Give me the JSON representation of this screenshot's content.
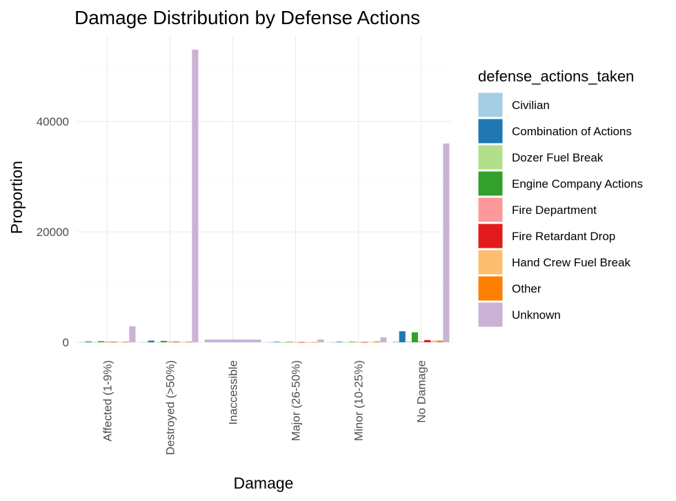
{
  "chart_data": {
    "type": "bar",
    "title": "Damage Distribution by Defense Actions",
    "xlabel": "Damage",
    "ylabel": "Proportion",
    "ylim": [
      0,
      55500
    ],
    "yticks": [
      0,
      20000,
      40000
    ],
    "grid": true,
    "legend_position": "right",
    "legend_title": "defense_actions_taken",
    "categories": [
      "Affected (1-9%)",
      "Destroyed (>50%)",
      "Inaccessible",
      "Major (26-50%)",
      "Minor (10-25%)",
      "No Damage"
    ],
    "series": [
      {
        "name": "Civilian",
        "color": "#A6CEE3",
        "values": [
          60,
          60,
          null,
          30,
          40,
          150
        ]
      },
      {
        "name": "Combination of Actions",
        "color": "#1F78B4",
        "values": [
          150,
          300,
          null,
          90,
          100,
          2000
        ]
      },
      {
        "name": "Dozer Fuel Break",
        "color": "#B2DF8A",
        "values": [
          40,
          50,
          null,
          20,
          30,
          100
        ]
      },
      {
        "name": "Engine Company Actions",
        "color": "#33A02C",
        "values": [
          200,
          250,
          null,
          80,
          100,
          1800
        ]
      },
      {
        "name": "Fire Department",
        "color": "#FB9A99",
        "values": [
          150,
          150,
          null,
          50,
          60,
          150
        ]
      },
      {
        "name": "Fire Retardant Drop",
        "color": "#E31A1C",
        "values": [
          80,
          100,
          null,
          40,
          50,
          400
        ]
      },
      {
        "name": "Hand Crew Fuel Break",
        "color": "#FDBF6F",
        "values": [
          100,
          100,
          null,
          50,
          70,
          300
        ]
      },
      {
        "name": "Other",
        "color": "#FF7F00",
        "values": [
          120,
          120,
          null,
          40,
          150,
          300
        ]
      },
      {
        "name": "Unknown",
        "color": "#CAB2D6",
        "values": [
          2900,
          53000,
          500,
          500,
          900,
          36000
        ]
      }
    ],
    "single_series_category": "Inaccessible"
  }
}
